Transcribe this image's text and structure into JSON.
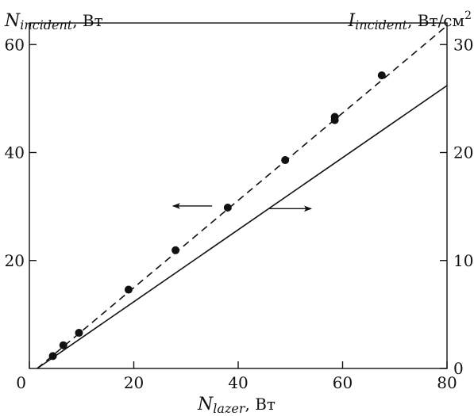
{
  "chart_data": {
    "type": "scatter",
    "title": "",
    "xlabel": {
      "main": "N",
      "sub": "lazer",
      "unit": ", Вт"
    },
    "ylabel_left": {
      "main": "N",
      "sub": "incident",
      "unit": ", Вт"
    },
    "ylabel_right": {
      "main": "I",
      "sub": "incident",
      "unit": ", Вт/см",
      "sup": "2"
    },
    "xlim": [
      0,
      80
    ],
    "ylim_left": [
      0,
      64
    ],
    "ylim_right": [
      0,
      32
    ],
    "x_ticks": [
      0,
      20,
      40,
      60,
      80
    ],
    "y_left_ticks": [
      20,
      40,
      60
    ],
    "y_right_ticks": [
      0,
      10,
      20,
      30
    ],
    "grid": false,
    "series": [
      {
        "style": "points",
        "axis": "left",
        "x": [
          4.5,
          6.5,
          9.5,
          19,
          28,
          38,
          49,
          58.5,
          58.5,
          67.5
        ],
        "y": [
          2.3,
          4.3,
          6.6,
          14.6,
          21.9,
          29.8,
          38.6,
          46,
          46.6,
          54.3
        ]
      },
      {
        "style": "dashed-line",
        "axis": "left",
        "x": [
          1.5,
          80
        ],
        "y": [
          0,
          63.5
        ]
      },
      {
        "style": "solid-line",
        "axis": "right",
        "x": [
          1.5,
          80
        ],
        "y": [
          0,
          26.2
        ]
      }
    ],
    "annotations": [
      {
        "type": "arrow",
        "direction": "left",
        "from": [
          35,
          30.1
        ],
        "to": [
          27.5,
          30.1
        ]
      },
      {
        "type": "arrow",
        "direction": "right",
        "from": [
          46,
          29.6
        ],
        "to": [
          54,
          29.6
        ]
      }
    ]
  }
}
